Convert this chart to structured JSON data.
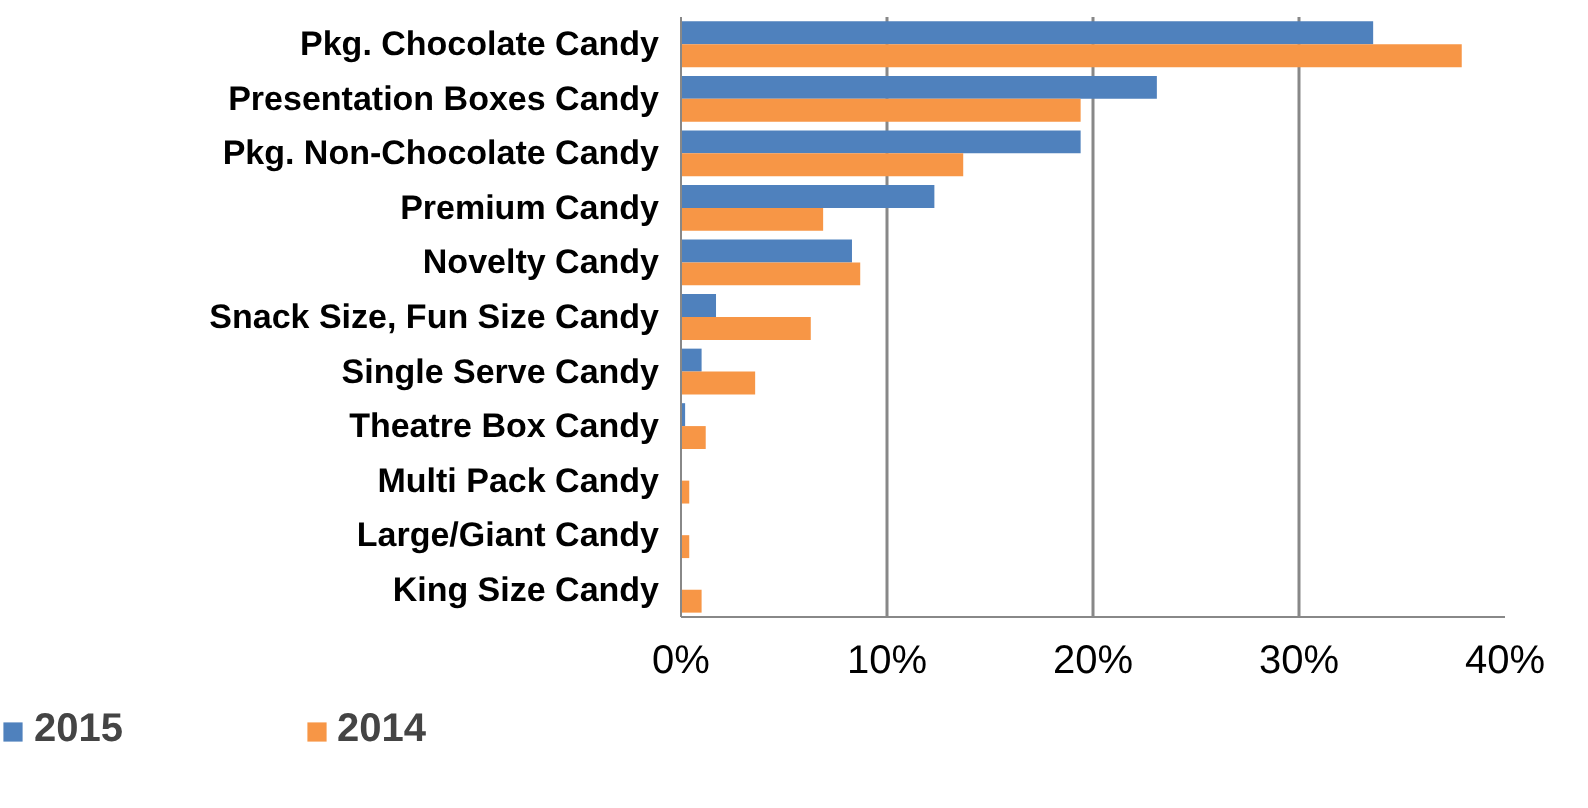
{
  "chart_data": {
    "type": "bar",
    "orientation": "horizontal",
    "categories": [
      "Pkg. Chocolate Candy",
      "Presentation Boxes Candy",
      "Pkg. Non-Chocolate Candy",
      "Premium Candy",
      "Novelty Candy",
      "Snack Size, Fun Size Candy",
      "Single Serve Candy",
      "Theatre Box Candy",
      "Multi Pack Candy",
      "Large/Giant Candy",
      "King Size Candy"
    ],
    "series": [
      {
        "name": "2015",
        "color": "#4f81bd",
        "values": [
          33.6,
          23.1,
          19.4,
          12.3,
          8.3,
          1.7,
          1.0,
          0.2,
          0,
          0,
          0
        ]
      },
      {
        "name": "2014",
        "color": "#f79646",
        "values": [
          37.9,
          19.4,
          13.7,
          6.9,
          8.7,
          6.3,
          3.6,
          1.2,
          0.4,
          0.4,
          1.0
        ]
      }
    ],
    "xlim": [
      0,
      40
    ],
    "xticks": [
      {
        "value": 0,
        "label": "0%"
      },
      {
        "value": 10,
        "label": "10%"
      },
      {
        "value": 20,
        "label": "20%"
      },
      {
        "value": 30,
        "label": "30%"
      },
      {
        "value": 40,
        "label": "40%"
      }
    ],
    "grid": "x",
    "legend": "bottom left"
  }
}
